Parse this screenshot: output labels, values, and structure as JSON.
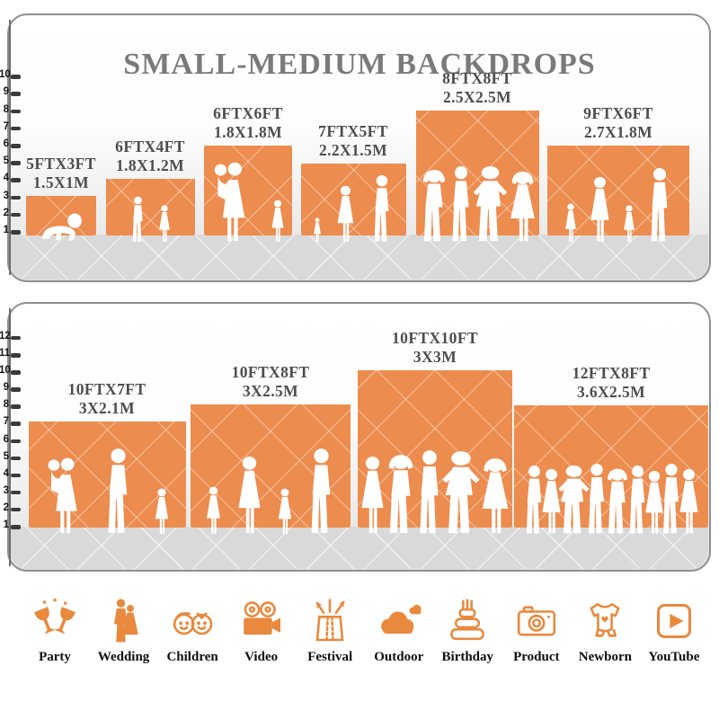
{
  "title": "SMALL-MEDIUM BACKDROPS",
  "colors": {
    "backdrop_orange": "#EC8C4E",
    "icon_orange": "#E8893E",
    "title_gray": "#7A7A7A",
    "label_gray": "#4D4D4D"
  },
  "panels": [
    {
      "name": "small-medium-backdrops",
      "ruler": {
        "min": 1,
        "max": 10
      },
      "backdrops": [
        {
          "size_ft": "5FTX3FT",
          "size_m": "1.5X1M",
          "figures": [
            "baby"
          ]
        },
        {
          "size_ft": "6FTX4FT",
          "size_m": "1.8X1.2M",
          "figures": [
            "boy",
            "girl"
          ]
        },
        {
          "size_ft": "6FTX6FT",
          "size_m": "1.8X1.8M",
          "figures": [
            "woman-carry",
            "girl"
          ]
        },
        {
          "size_ft": "7FTX5FT",
          "size_m": "2.2X1.5M",
          "figures": [
            "girl-small",
            "woman",
            "man"
          ]
        },
        {
          "size_ft": "8FTX8FT",
          "size_m": "2.5X2.5M",
          "figures": [
            "arms-up",
            "man",
            "man-hips",
            "woman-arms-up"
          ]
        },
        {
          "size_ft": "9FTX6FT",
          "size_m": "2.7X1.8M",
          "figures": [
            "girl",
            "woman",
            "girl",
            "man"
          ]
        }
      ]
    },
    {
      "name": "medium-large-backdrops",
      "ruler": {
        "min": 1,
        "max": 12
      },
      "backdrops": [
        {
          "size_ft": "10FTX7FT",
          "size_m": "3X2.1M",
          "figures": [
            "woman-carry",
            "man",
            "girl"
          ]
        },
        {
          "size_ft": "10FTX8FT",
          "size_m": "3X2.5M",
          "figures": [
            "girl",
            "woman",
            "girl",
            "man"
          ]
        },
        {
          "size_ft": "10FTX10FT",
          "size_m": "3X3M",
          "figures": [
            "woman",
            "arms-up",
            "man",
            "man-hips",
            "woman-arms-up"
          ]
        },
        {
          "size_ft": "12FTX8FT",
          "size_m": "3.6X2.5M",
          "figures": [
            "man",
            "woman",
            "man-hips",
            "man",
            "arms-up",
            "man",
            "woman",
            "man",
            "woman"
          ]
        }
      ]
    }
  ],
  "categories": [
    {
      "label": "Party",
      "icon": "party-icon"
    },
    {
      "label": "Wedding",
      "icon": "wedding-icon"
    },
    {
      "label": "Children",
      "icon": "children-icon"
    },
    {
      "label": "Video",
      "icon": "video-icon"
    },
    {
      "label": "Festival",
      "icon": "festival-icon"
    },
    {
      "label": "Outdoor",
      "icon": "outdoor-icon"
    },
    {
      "label": "Birthday",
      "icon": "birthday-icon"
    },
    {
      "label": "Product",
      "icon": "product-icon"
    },
    {
      "label": "Newborn",
      "icon": "newborn-icon"
    },
    {
      "label": "YouTube",
      "icon": "youtube-icon"
    }
  ]
}
